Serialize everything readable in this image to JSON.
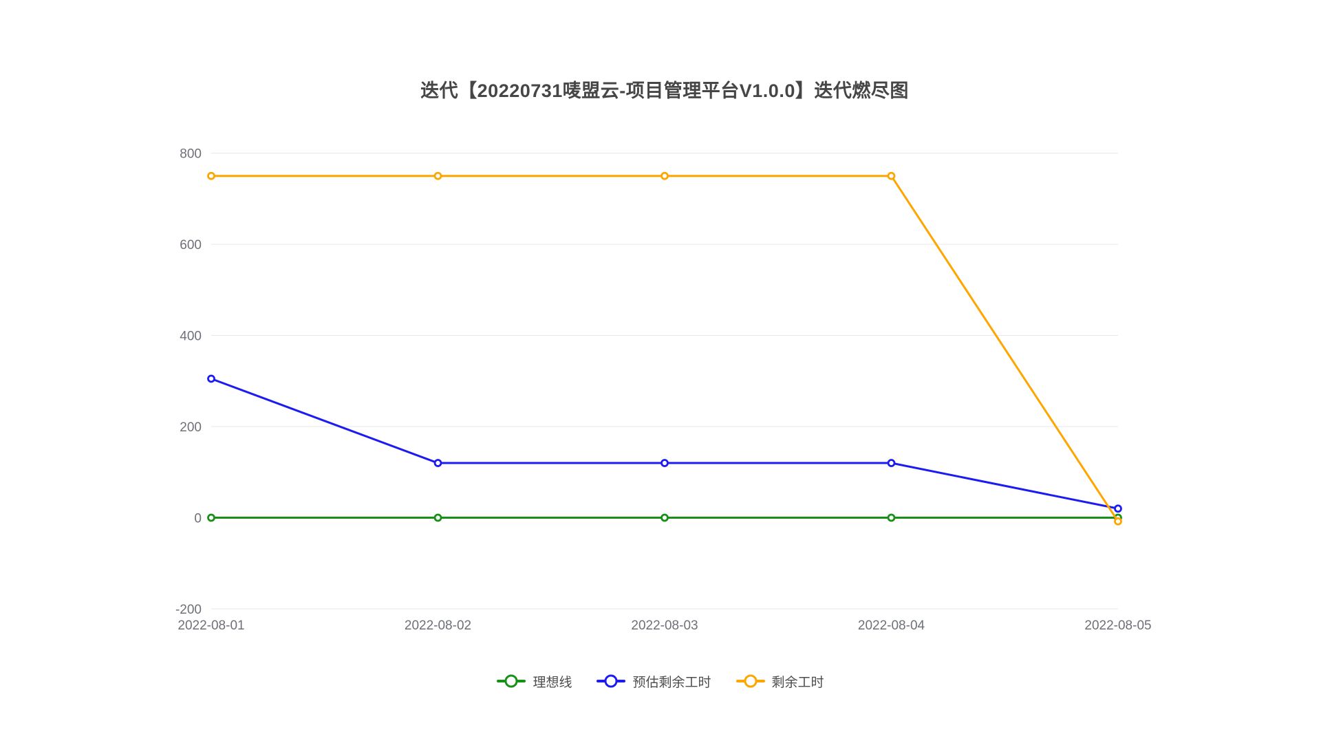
{
  "chart": {
    "title": "迭代【20220731唛盟云-项目管理平台V1.0.0】迭代燃尽图"
  },
  "chart_data": {
    "type": "line",
    "title": "迭代【20220731唛盟云-项目管理平台V1.0.0】迭代燃尽图",
    "x": [
      "2022-08-01",
      "2022-08-02",
      "2022-08-03",
      "2022-08-04",
      "2022-08-05"
    ],
    "series": [
      {
        "name": "理想线",
        "key": "ideal",
        "color": "#169116",
        "values": [
          0,
          0,
          0,
          0,
          0
        ]
      },
      {
        "name": "预估剩余工时",
        "key": "estimated-remaining",
        "color": "#1c1cf0",
        "values": [
          305,
          120,
          120,
          120,
          20
        ]
      },
      {
        "name": "剩余工时",
        "key": "remaining",
        "color": "#ffa500",
        "values": [
          750,
          750,
          750,
          750,
          -8
        ]
      }
    ],
    "xlabel": "",
    "ylabel": "",
    "ylim": [
      -200,
      800
    ],
    "yticks": [
      -200,
      0,
      200,
      400,
      600,
      800
    ],
    "grid": true,
    "legend_position": "bottom",
    "marker": "empty-circle"
  },
  "colors": {
    "title_text": "#464646",
    "axis_label": "#6E7079",
    "gridline": "#E4E7ED",
    "legend_text": "#4d4d4d",
    "background": "#ffffff"
  }
}
